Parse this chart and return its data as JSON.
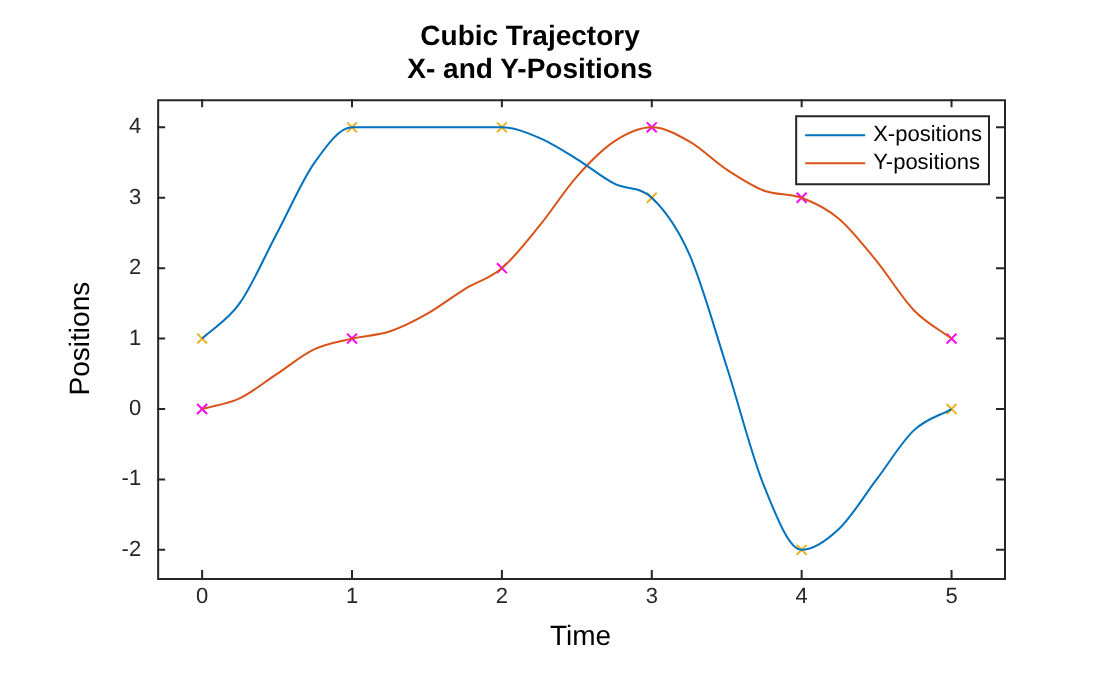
{
  "chart_data": {
    "type": "line",
    "title": "Cubic Trajectory",
    "subtitle": "X- and Y-Positions",
    "xlabel": "Time",
    "ylabel": "Positions",
    "xlim": [
      -0.3,
      5.35
    ],
    "ylim": [
      -2.4,
      4.4
    ],
    "xticks": [
      0,
      1,
      2,
      3,
      4,
      5
    ],
    "yticks": [
      -2,
      -1,
      0,
      1,
      2,
      3,
      4
    ],
    "grid": false,
    "legend": "top right",
    "series": [
      {
        "name": "X-positions",
        "marker": "none",
        "color": "#0072bd",
        "x": [
          0,
          0.25,
          0.5,
          0.75,
          1,
          1.25,
          1.5,
          1.75,
          2,
          2.25,
          2.5,
          2.75,
          3,
          3.25,
          3.5,
          3.75,
          4,
          4.25,
          4.5,
          4.75,
          5
        ],
        "values": [
          1,
          1.5,
          2.5,
          3.5,
          4,
          4,
          4,
          4,
          4,
          3.85,
          3.55,
          3.2,
          3,
          2.2,
          0.6,
          -1.1,
          -2,
          -1.7,
          -1,
          -0.3,
          0
        ]
      },
      {
        "name": "Y-positions",
        "marker": "none",
        "color": "#d95319",
        "x": [
          0,
          0.25,
          0.5,
          0.75,
          1,
          1.25,
          1.5,
          1.75,
          2,
          2.25,
          2.5,
          2.75,
          3,
          3.25,
          3.5,
          3.75,
          4,
          4.25,
          4.5,
          4.75,
          5
        ],
        "values": [
          0,
          0.15,
          0.5,
          0.85,
          1,
          1.1,
          1.35,
          1.7,
          2,
          2.6,
          3.3,
          3.8,
          4,
          3.8,
          3.4,
          3.1,
          3,
          2.7,
          2.1,
          1.4,
          1
        ]
      },
      {
        "type": "scatter",
        "marker": "cross",
        "color": "#edb120",
        "x": [
          0,
          1,
          2,
          3,
          4,
          5
        ],
        "values": [
          1,
          4,
          4,
          3,
          -2,
          0
        ]
      },
      {
        "type": "scatter",
        "marker": "cross",
        "color": "#ff00ff",
        "x": [
          0,
          1,
          2,
          3,
          4,
          5
        ],
        "values": [
          0,
          1,
          2,
          4,
          3,
          1
        ]
      }
    ]
  }
}
